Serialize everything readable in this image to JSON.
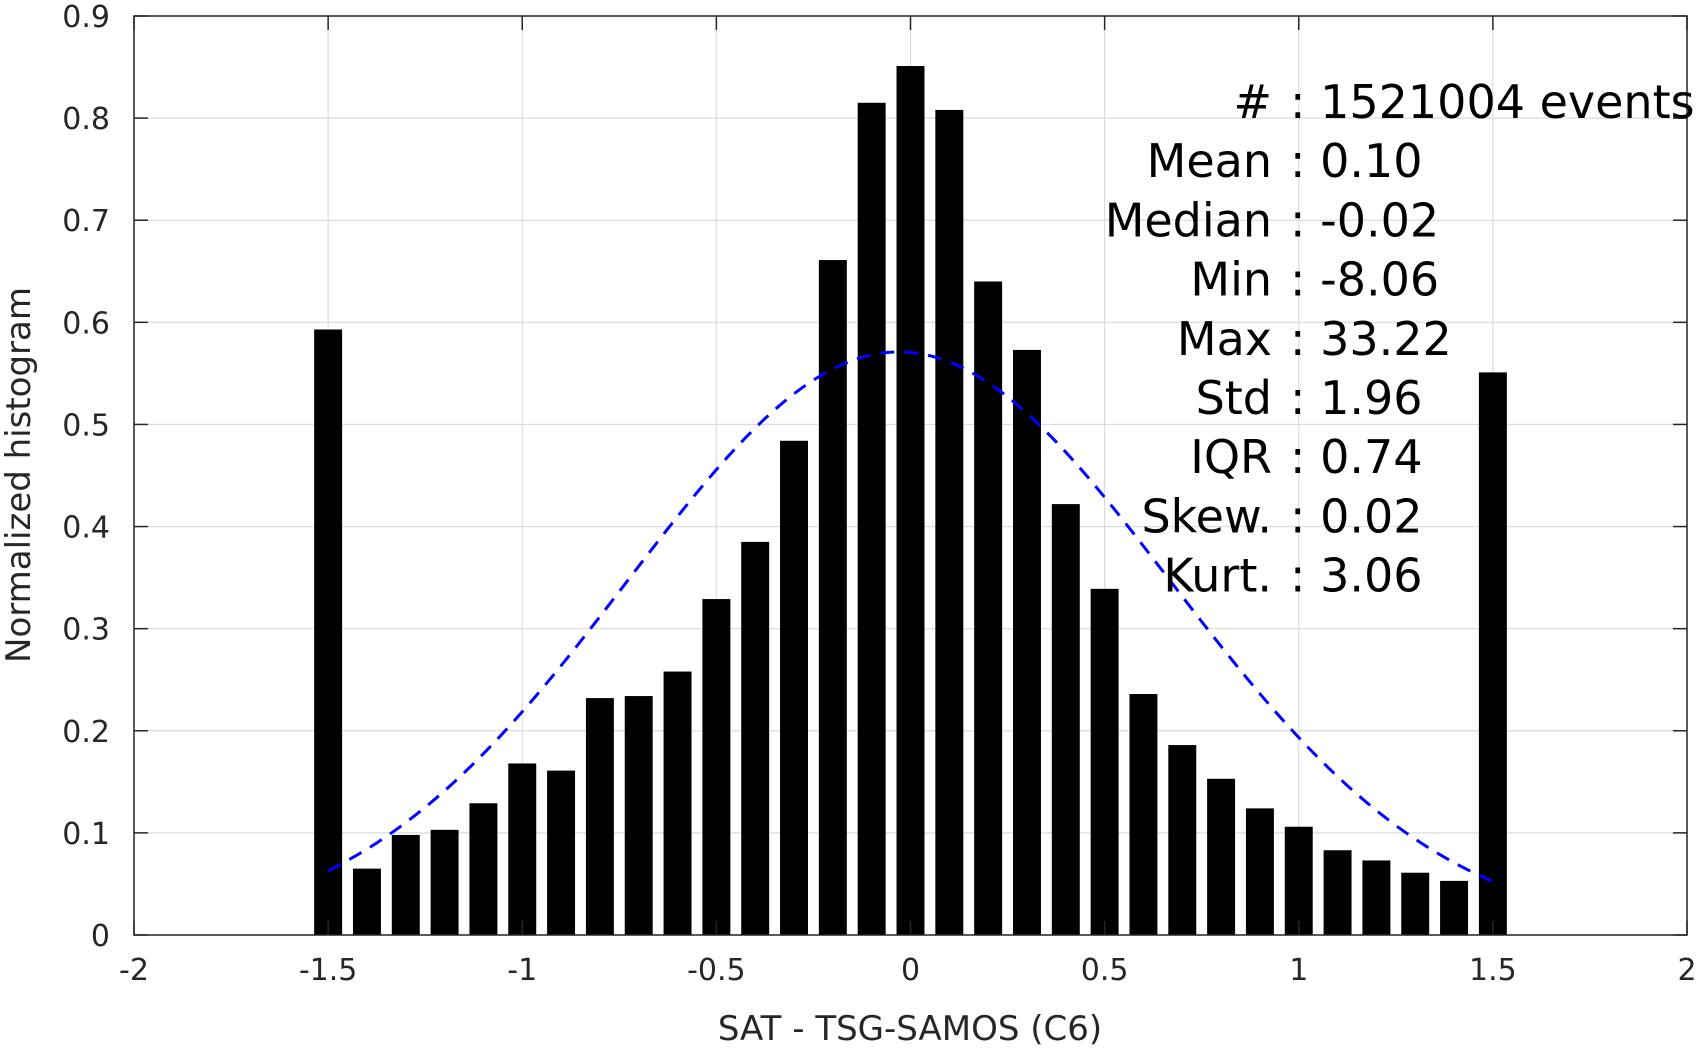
{
  "chart_data": {
    "type": "bar",
    "xlabel": "SAT - TSG-SAMOS (C6)",
    "ylabel": "Normalized histogram",
    "xlim": [
      -2,
      2
    ],
    "ylim": [
      0,
      0.9
    ],
    "xticks": [
      -2,
      -1.5,
      -1,
      -0.5,
      0,
      0.5,
      1,
      1.5,
      2
    ],
    "xtick_labels": [
      "-2",
      "-1.5",
      "-1",
      "-0.5",
      "0",
      "0.5",
      "1",
      "1.5",
      "2"
    ],
    "yticks": [
      0,
      0.1,
      0.2,
      0.3,
      0.4,
      0.5,
      0.6,
      0.7,
      0.8,
      0.9
    ],
    "ytick_labels": [
      "0",
      "0.1",
      "0.2",
      "0.3",
      "0.4",
      "0.5",
      "0.6",
      "0.7",
      "0.8",
      "0.9"
    ],
    "grid": true,
    "bar_color": "#000000",
    "bin_width": 0.1,
    "bins": [
      -1.5,
      -1.4,
      -1.3,
      -1.2,
      -1.1,
      -1.0,
      -0.9,
      -0.8,
      -0.7,
      -0.6,
      -0.5,
      -0.4,
      -0.3,
      -0.2,
      -0.1,
      0.0,
      0.1,
      0.2,
      0.3,
      0.4,
      0.5,
      0.6,
      0.7,
      0.8,
      0.9,
      1.0,
      1.1,
      1.2,
      1.3,
      1.4,
      1.5
    ],
    "values": [
      0.593,
      0.065,
      0.098,
      0.103,
      0.129,
      0.168,
      0.161,
      0.232,
      0.234,
      0.258,
      0.329,
      0.385,
      0.484,
      0.661,
      0.815,
      0.851,
      0.808,
      0.64,
      0.573,
      0.422,
      0.339,
      0.236,
      0.186,
      0.153,
      0.124,
      0.106,
      0.083,
      0.073,
      0.061,
      0.053,
      0.551
    ],
    "fit_curve": {
      "style": "dashed",
      "color": "#0000ff",
      "mean": -0.03,
      "std": 0.7,
      "peak": 0.571,
      "x_range": [
        -1.5,
        1.5
      ]
    },
    "stats": [
      {
        "label": "#",
        "value": ": 1521004 events"
      },
      {
        "label": "Mean",
        "value": ": 0.10"
      },
      {
        "label": "Median",
        "value": ": -0.02"
      },
      {
        "label": "Min",
        "value": ": -8.06"
      },
      {
        "label": "Max",
        "value": ": 33.22"
      },
      {
        "label": "Std",
        "value": ": 1.96"
      },
      {
        "label": "IQR",
        "value": ": 0.74"
      },
      {
        "label": "Skew.",
        "value": ": 0.02"
      },
      {
        "label": "Kurt.",
        "value": ": 3.06"
      }
    ]
  }
}
